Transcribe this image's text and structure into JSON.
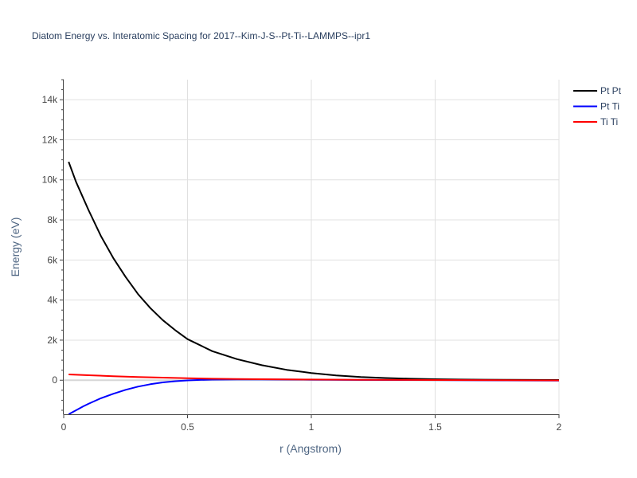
{
  "chart_data": {
    "type": "line",
    "title": "Diatom Energy vs. Interatomic Spacing for 2017--Kim-J-S--Pt-Ti--LAMMPS--ipr1",
    "xlabel": "r (Angstrom)",
    "ylabel": "Energy (eV)",
    "xlim": [
      0,
      2
    ],
    "ylim": [
      -1700,
      15000
    ],
    "x_ticks": [
      0,
      0.5,
      1,
      1.5,
      2
    ],
    "x_tick_labels": [
      "0",
      "0.5",
      "1",
      "1.5",
      "2"
    ],
    "y_ticks": [
      0,
      2000,
      4000,
      6000,
      8000,
      10000,
      12000,
      14000
    ],
    "y_tick_labels": [
      "0",
      "2k",
      "4k",
      "6k",
      "8k",
      "10k",
      "12k",
      "14k"
    ],
    "grid": true,
    "legend_position": "top-right",
    "series": [
      {
        "name": "Pt Pt",
        "color": "#000000",
        "x": [
          0.02,
          0.05,
          0.1,
          0.15,
          0.2,
          0.25,
          0.3,
          0.35,
          0.4,
          0.45,
          0.5,
          0.6,
          0.7,
          0.8,
          0.9,
          1.0,
          1.1,
          1.2,
          1.3,
          1.4,
          1.5,
          1.6,
          1.7,
          1.8,
          1.9,
          2.0
        ],
        "y": [
          10900,
          9900,
          8500,
          7200,
          6100,
          5150,
          4300,
          3600,
          3000,
          2500,
          2050,
          1450,
          1050,
          750,
          520,
          360,
          240,
          160,
          110,
          75,
          50,
          35,
          25,
          18,
          12,
          8
        ]
      },
      {
        "name": "Pt Ti",
        "color": "#0000ff",
        "x": [
          0.02,
          0.05,
          0.08,
          0.1,
          0.15,
          0.2,
          0.25,
          0.3,
          0.35,
          0.4,
          0.45,
          0.5,
          0.55,
          0.6,
          0.7,
          0.8,
          1.0,
          1.2,
          1.5,
          2.0
        ],
        "y": [
          -1700,
          -1500,
          -1300,
          -1180,
          -900,
          -680,
          -480,
          -320,
          -200,
          -110,
          -50,
          -10,
          15,
          30,
          40,
          38,
          25,
          15,
          5,
          -20
        ]
      },
      {
        "name": "Ti Ti",
        "color": "#ff0000",
        "x": [
          0.02,
          0.1,
          0.2,
          0.3,
          0.4,
          0.5,
          0.6,
          0.7,
          0.8,
          1.0,
          1.2,
          1.5,
          2.0
        ],
        "y": [
          290,
          250,
          200,
          160,
          130,
          100,
          75,
          60,
          50,
          35,
          20,
          8,
          -10
        ]
      }
    ]
  }
}
